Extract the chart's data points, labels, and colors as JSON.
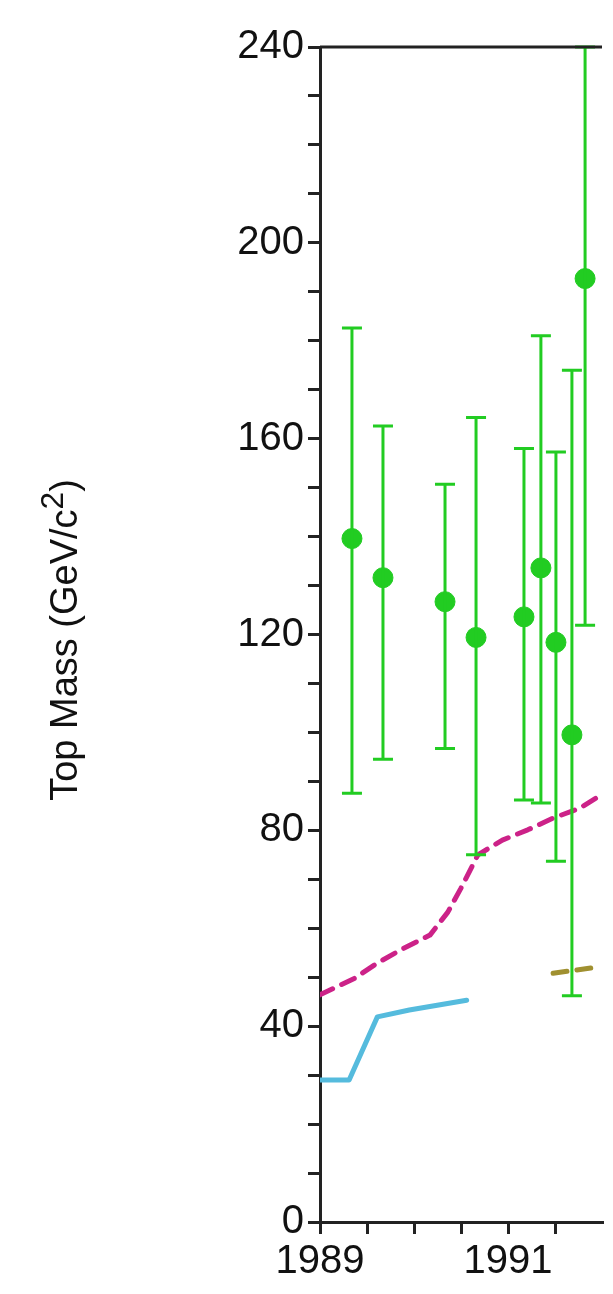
{
  "chart_data": {
    "type": "scatter",
    "ylabel": "Top Mass (GeV/c$^{2}$)",
    "xlim": [
      1989,
      1992
    ],
    "xticks": [
      1989,
      {
        "value": 1989.5,
        "label": null
      },
      {
        "value": 1990,
        "label": null
      },
      {
        "value": 1990.5,
        "label": null
      },
      1991,
      {
        "value": 1991.5,
        "label": null
      }
    ],
    "ylim": [
      0,
      240
    ],
    "yticks": [
      0,
      {
        "value": 10,
        "label": null
      },
      {
        "value": 20,
        "label": null
      },
      {
        "value": 30,
        "label": null
      },
      40,
      {
        "value": 50,
        "label": null
      },
      {
        "value": 60,
        "label": null
      },
      {
        "value": 70,
        "label": null
      },
      80,
      {
        "value": 90,
        "label": null
      },
      {
        "value": 100,
        "label": null
      },
      {
        "value": 110,
        "label": null
      },
      120,
      {
        "value": 130,
        "label": null
      },
      {
        "value": 140,
        "label": null
      },
      {
        "value": 150,
        "label": null
      },
      160,
      {
        "value": 170,
        "label": null
      },
      {
        "value": 180,
        "label": null
      },
      {
        "value": 190,
        "label": null
      },
      200,
      {
        "value": 210,
        "label": null
      },
      {
        "value": 220,
        "label": null
      },
      {
        "value": 230,
        "label": null
      },
      240
    ],
    "grid": false,
    "legend": false,
    "series": [
      {
        "color": "#22cc22",
        "marker": "circle",
        "x": [
          1989.34,
          1989.67,
          1990.33,
          1990.66,
          1991.17,
          1991.35,
          1991.51,
          1991.68,
          1991.82
        ],
        "values": [
          139.6,
          131.6,
          126.7,
          119.4,
          123.6,
          133.6,
          118.4,
          99.5,
          192.7
        ],
        "errors": [
          [
            87.6,
            182.6
          ],
          [
            94.5,
            162.6
          ],
          [
            96.7,
            150.7
          ],
          [
            75,
            164.3
          ],
          [
            86.2,
            158
          ],
          [
            85.6,
            181
          ],
          [
            73.7,
            157.3
          ],
          [
            46.2,
            174
          ],
          [
            121.9,
            240
          ]
        ]
      },
      {
        "type": "line",
        "color": "#cc2288",
        "line_style": "dashed",
        "marker": "none",
        "x": [
          1989.0,
          1989.37,
          1989.61,
          1989.88,
          1990.17,
          1990.36,
          1990.5,
          1990.68,
          1990.94,
          1991.21,
          1991.48,
          1991.76,
          1991.99
        ],
        "values": [
          46.4,
          49.8,
          52.9,
          55.8,
          58.6,
          63.3,
          68.2,
          75,
          78,
          80.1,
          82.5,
          84.5,
          87.2
        ]
      },
      {
        "type": "line",
        "color": "#55bbdd",
        "line_style": "solid",
        "marker": "none",
        "x": [
          1989.0,
          1989.31,
          1989.61,
          1989.95,
          1990.56
        ],
        "values": [
          29,
          29,
          41.9,
          43.3,
          45.3
        ]
      },
      {
        "type": "line",
        "color": "#a09030",
        "line_style": "dashed",
        "marker": "none",
        "x": [
          1991.48,
          1991.96
        ],
        "values": [
          50.8,
          52.1
        ]
      }
    ]
  }
}
